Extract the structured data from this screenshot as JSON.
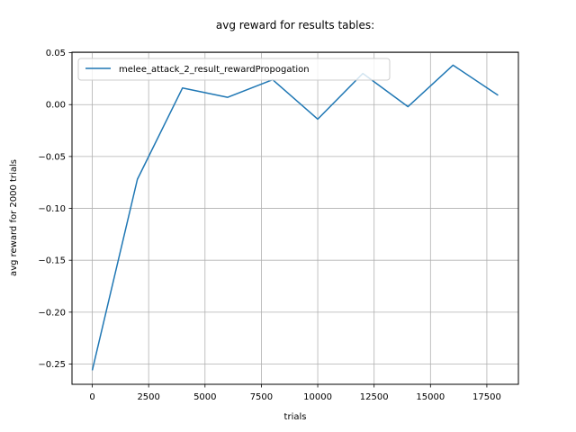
{
  "chart_data": {
    "type": "line",
    "title": "avg reward for results tables:",
    "xlabel": "trials",
    "ylabel": "avg reward for 2000 trials",
    "xlim": [
      -900,
      18900
    ],
    "ylim": [
      -0.2695,
      0.0505
    ],
    "xticks": [
      0,
      2500,
      5000,
      7500,
      10000,
      12500,
      15000,
      17500
    ],
    "xtick_labels": [
      "0",
      "2500",
      "5000",
      "7500",
      "10000",
      "12500",
      "15000",
      "17500"
    ],
    "yticks": [
      0.05,
      0.0,
      -0.05,
      -0.1,
      -0.15,
      -0.2,
      -0.25
    ],
    "ytick_labels": [
      "0.05",
      "0.00",
      "−0.05",
      "−0.10",
      "−0.15",
      "−0.20",
      "−0.25"
    ],
    "grid": true,
    "legend_position": "upper-left",
    "series": [
      {
        "name": "melee_attack_2_result_rewardPropogation",
        "color": "#1f77b4",
        "x": [
          0,
          2000,
          4000,
          6000,
          8000,
          10000,
          12000,
          14000,
          16000,
          18000
        ],
        "y": [
          -0.256,
          -0.072,
          0.016,
          0.007,
          0.024,
          -0.014,
          0.03,
          -0.002,
          0.038,
          0.009
        ]
      }
    ]
  }
}
